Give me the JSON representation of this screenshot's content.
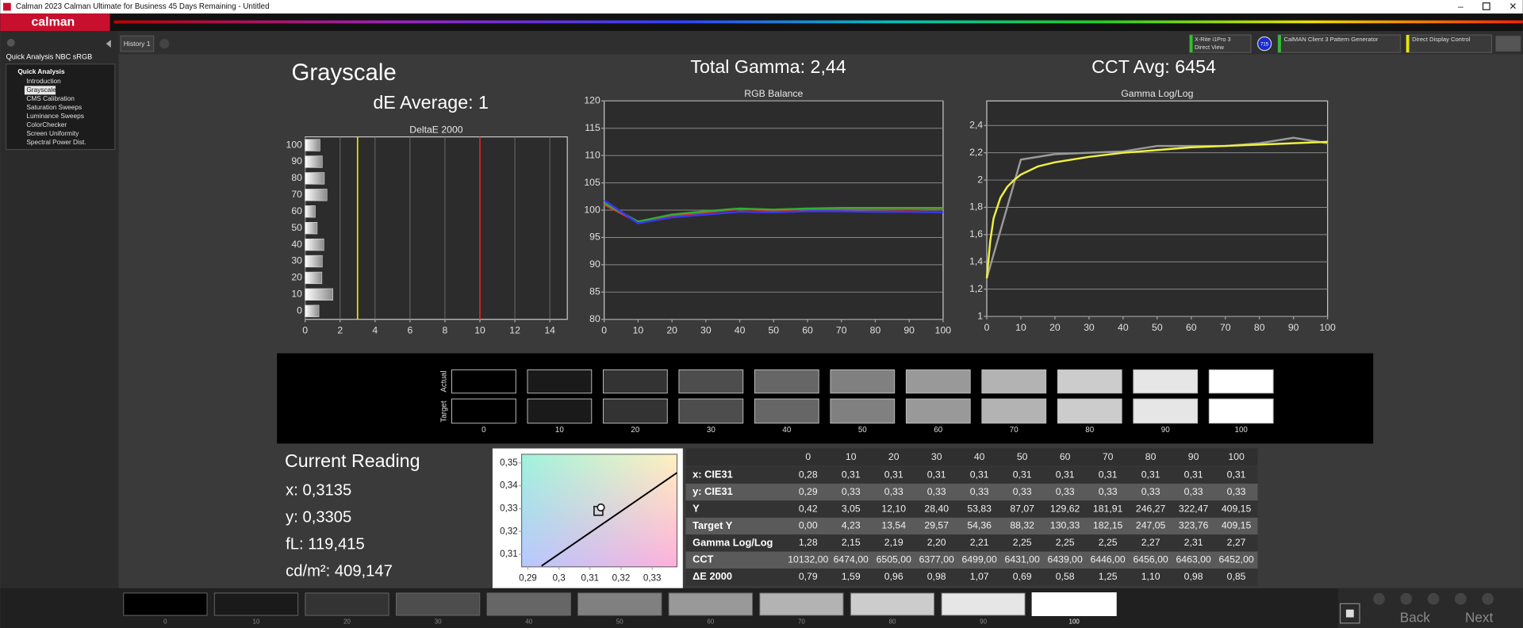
{
  "window": {
    "title": "Calman 2023 Calman Ultimate for Business 45 Days Remaining  - Untitled"
  },
  "toolbar": {
    "logo": "calman",
    "tab": "History 1",
    "meter": [
      "X-Rite i1Pro 3",
      "Direct View"
    ],
    "meter_badge": "715",
    "generator": "CalMAN Client 3 Pattern Generator",
    "display": "Direct Display Control"
  },
  "sidebar": {
    "title": "Quick Analysis NBC sRGB",
    "group": "Quick Analysis",
    "items": [
      "Introduction",
      "Grayscale",
      "CMS Calibration",
      "Saturation Sweeps",
      "Luminance Sweeps",
      "ColorChecker",
      "Screen Uniformity",
      "Spectral Power Dist."
    ],
    "selected": 1
  },
  "header": {
    "page_title": "Grayscale",
    "de_average": "dE Average: 1",
    "total_gamma": "Total Gamma: 2,44",
    "cct_avg": "CCT Avg: 6454"
  },
  "levels": [
    "0",
    "10",
    "20",
    "30",
    "40",
    "50",
    "60",
    "70",
    "80",
    "90",
    "100"
  ],
  "chart_data": [
    {
      "type": "bar",
      "orientation": "horizontal",
      "title": "DeltaE 2000",
      "categories": [
        "0",
        "10",
        "20",
        "30",
        "40",
        "50",
        "60",
        "70",
        "80",
        "90",
        "100"
      ],
      "values": [
        0.79,
        1.59,
        0.96,
        0.98,
        1.07,
        0.69,
        0.58,
        1.25,
        1.1,
        0.98,
        0.85
      ],
      "color": "#dcdcdc",
      "xlim": [
        0,
        15
      ],
      "xticks": [
        0,
        2,
        4,
        6,
        8,
        10,
        12,
        14
      ],
      "grid": "x",
      "thresholds": [
        {
          "value": 3,
          "color": "#e6e600"
        },
        {
          "value": 10,
          "color": "#e02424"
        }
      ]
    },
    {
      "type": "line",
      "title": "RGB Balance",
      "x": [
        0,
        10,
        20,
        30,
        40,
        50,
        60,
        70,
        80,
        90,
        100
      ],
      "series": [
        {
          "color": "#e03030",
          "values": [
            101.0,
            97.8,
            98.9,
            99.6,
            100.2,
            99.9,
            100.2,
            100.2,
            100.2,
            100.1,
            100.3
          ]
        },
        {
          "color": "#2fb02f",
          "values": [
            101.3,
            97.9,
            99.2,
            99.8,
            100.3,
            100.1,
            100.3,
            100.4,
            100.4,
            100.4,
            100.4
          ]
        },
        {
          "color": "#3838f0",
          "values": [
            101.8,
            97.6,
            98.7,
            99.2,
            99.7,
            99.6,
            99.8,
            99.8,
            99.7,
            99.7,
            99.6
          ]
        }
      ],
      "xlim": [
        0,
        100
      ],
      "xticks": [
        0,
        10,
        20,
        30,
        40,
        50,
        60,
        70,
        80,
        90,
        100
      ],
      "ylim": [
        80,
        120
      ],
      "yticks": [
        80,
        85,
        90,
        95,
        100,
        105,
        110,
        115,
        120
      ],
      "grid": "y"
    },
    {
      "type": "line",
      "title": "Gamma Log/Log",
      "series": [
        {
          "color": "#9a9a9a",
          "x": [
            0,
            10,
            20,
            30,
            40,
            50,
            60,
            70,
            80,
            90,
            100
          ],
          "values": [
            1.28,
            2.15,
            2.19,
            2.2,
            2.21,
            2.25,
            2.25,
            2.25,
            2.27,
            2.31,
            2.27
          ]
        },
        {
          "color": "#f0f040",
          "x": [
            0,
            1,
            2,
            4,
            6,
            8,
            10,
            15,
            20,
            30,
            40,
            50,
            60,
            70,
            80,
            90,
            100
          ],
          "values": [
            1.28,
            1.55,
            1.72,
            1.87,
            1.95,
            2.0,
            2.04,
            2.1,
            2.13,
            2.17,
            2.2,
            2.22,
            2.24,
            2.25,
            2.26,
            2.27,
            2.28
          ]
        }
      ],
      "xlim": [
        0,
        100
      ],
      "xticks": [
        0,
        10,
        20,
        30,
        40,
        50,
        60,
        70,
        80,
        90,
        100
      ],
      "ylim": [
        1,
        2.58
      ],
      "yticks": [
        1,
        {
          "value": 1.2,
          "label": "1,2"
        },
        {
          "value": 1.4,
          "label": "1,4"
        },
        {
          "value": 1.6,
          "label": "1,6"
        },
        {
          "value": 1.8,
          "label": "1,8"
        },
        2,
        {
          "value": 2.2,
          "label": "2,2"
        },
        {
          "value": 2.4,
          "label": "2,4"
        }
      ],
      "grid": "y"
    },
    {
      "type": "scatter",
      "series": [
        {
          "marker": "line",
          "color": "#000000",
          "x": [
            0.2944,
            0.31,
            0.338
          ],
          "values": [
            0.3049,
            0.3195,
            0.3457
          ]
        },
        {
          "marker": "square",
          "color": "#202020",
          "x": [
            0.3127
          ],
          "values": [
            0.329
          ]
        },
        {
          "marker": "circle",
          "color": "#202020",
          "x": [
            0.3135
          ],
          "values": [
            0.3305
          ]
        }
      ],
      "xlim": [
        0.288,
        0.338
      ],
      "xticks": [
        {
          "value": 0.29,
          "label": "0,29"
        },
        {
          "value": 0.3,
          "label": "0,3"
        },
        {
          "value": 0.31,
          "label": "0,31"
        },
        {
          "value": 0.32,
          "label": "0,32"
        },
        {
          "value": 0.33,
          "label": "0,33"
        }
      ],
      "ylim": [
        0.3045,
        0.3538
      ],
      "yticks": [
        {
          "value": 0.31,
          "label": "0,31"
        },
        {
          "value": 0.32,
          "label": "0,32"
        },
        {
          "value": 0.33,
          "label": "0,33"
        },
        {
          "value": 0.34,
          "label": "0,34"
        },
        {
          "value": 0.35,
          "label": "0,35"
        }
      ]
    }
  ],
  "swatches": {
    "actual_label": "Actual",
    "target_label": "Target"
  },
  "current_reading": {
    "title": "Current Reading",
    "lines": [
      "x: 0,3135",
      "y: 0,3305",
      "fL: 119,415",
      "cd/m²: 409,147"
    ]
  },
  "table": {
    "rows": [
      {
        "label": "x: CIE31",
        "cells": [
          "0,28",
          "0,31",
          "0,31",
          "0,31",
          "0,31",
          "0,31",
          "0,31",
          "0,31",
          "0,31",
          "0,31",
          "0,31"
        ]
      },
      {
        "label": "y: CIE31",
        "cells": [
          "0,29",
          "0,33",
          "0,33",
          "0,33",
          "0,33",
          "0,33",
          "0,33",
          "0,33",
          "0,33",
          "0,33",
          "0,33"
        ]
      },
      {
        "label": "Y",
        "cells": [
          "0,42",
          "3,05",
          "12,10",
          "28,40",
          "53,83",
          "87,07",
          "129,62",
          "181,91",
          "246,27",
          "322,47",
          "409,15"
        ]
      },
      {
        "label": "Target Y",
        "cells": [
          "0,00",
          "4,23",
          "13,54",
          "29,57",
          "54,36",
          "88,32",
          "130,33",
          "182,15",
          "247,05",
          "323,76",
          "409,15"
        ]
      },
      {
        "label": "Gamma Log/Log",
        "cells": [
          "1,28",
          "2,15",
          "2,19",
          "2,20",
          "2,21",
          "2,25",
          "2,25",
          "2,25",
          "2,27",
          "2,31",
          "2,27"
        ]
      },
      {
        "label": "CCT",
        "cells": [
          "10132,00",
          "6474,00",
          "6505,00",
          "6377,00",
          "6499,00",
          "6431,00",
          "6439,00",
          "6446,00",
          "6456,00",
          "6463,00",
          "6452,00"
        ]
      },
      {
        "label": "ΔE 2000",
        "cells": [
          "0,79",
          "1,59",
          "0,96",
          "0,98",
          "1,07",
          "0,69",
          "0,58",
          "1,25",
          "1,10",
          "0,98",
          "0,85"
        ]
      }
    ]
  },
  "bottom_strip": {
    "selected": 10
  },
  "nav": {
    "back": "Back",
    "next": "Next"
  }
}
